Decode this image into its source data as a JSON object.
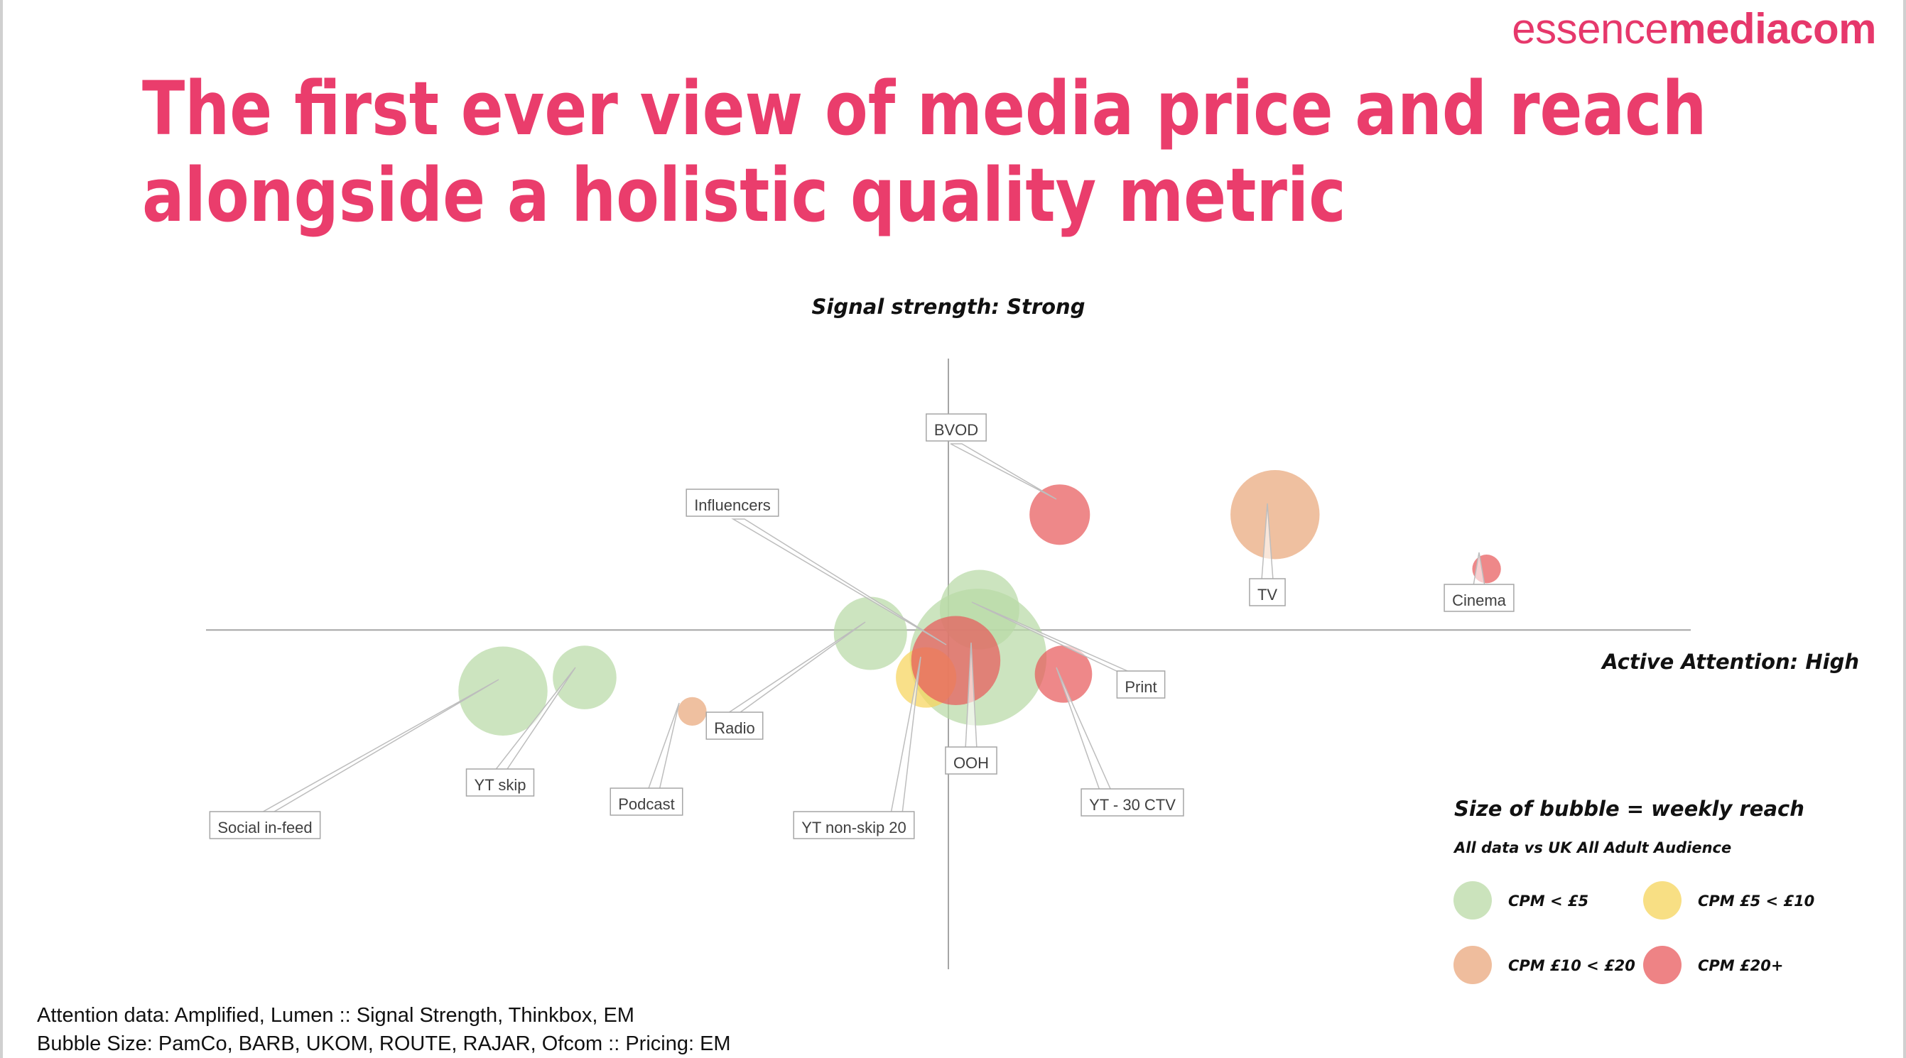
{
  "brand": {
    "logo_part1": "essence",
    "logo_part2": "mediacom"
  },
  "title": {
    "line1": "The first ever view of media price and reach",
    "line2": "alongside a holistic quality metric"
  },
  "chart_data": {
    "type": "scatter",
    "axes": {
      "y_top_label": "Signal strength: Strong",
      "x_right_label": "Active Attention: High",
      "xlim": [
        -10,
        10
      ],
      "ylim": [
        -5,
        4
      ]
    },
    "legend": {
      "title": "Size of bubble = weekly reach",
      "subtitle": "All data vs UK All Adult Audience",
      "placement": "bottom-right",
      "items": [
        {
          "label": "CPM < £5",
          "category": "cpm_lt5"
        },
        {
          "label": "CPM  £5 < £10",
          "category": "cpm_5_10"
        },
        {
          "label": "CPM  £10 < £20",
          "category": "cpm_10_20"
        },
        {
          "label": "CPM  £20+",
          "category": "cpm_20plus"
        }
      ]
    },
    "colors": {
      "cpm_lt5": "#b9d9a6",
      "cpm_5_10": "#f6d45b",
      "cpm_10_20": "#e9a77c",
      "cpm_20plus": "#e85a5c"
    },
    "points": [
      {
        "label": "Social in-feed",
        "x": -6.0,
        "y": -0.9,
        "reach": 56,
        "category": "cpm_lt5"
      },
      {
        "label": "YT skip",
        "x": -4.9,
        "y": -0.7,
        "reach": 40,
        "category": "cpm_lt5"
      },
      {
        "label": "Podcast",
        "x": -3.45,
        "y": -1.2,
        "reach": 18,
        "category": "cpm_10_20"
      },
      {
        "label": "Radio",
        "x": -1.05,
        "y": -0.05,
        "reach": 46,
        "category": "cpm_lt5"
      },
      {
        "label": "OOH",
        "x": 0.4,
        "y": -0.4,
        "reach": 86,
        "category": "cpm_lt5"
      },
      {
        "label": "Influencers",
        "x": 0.42,
        "y": 0.3,
        "reach": 50,
        "category": "cpm_lt5"
      },
      {
        "label": "YT non-skip 20",
        "x": -0.3,
        "y": -0.7,
        "reach": 38,
        "category": "cpm_5_10"
      },
      {
        "label": "YT - 30 CTV",
        "x": 1.55,
        "y": -0.65,
        "reach": 36,
        "category": "cpm_20plus"
      },
      {
        "label": "Print",
        "x": 0.1,
        "y": -0.45,
        "reach": 56,
        "category": "cpm_20plus"
      },
      {
        "label": "BVOD",
        "x": 1.5,
        "y": 1.7,
        "reach": 38,
        "category": "cpm_20plus"
      },
      {
        "label": "TV",
        "x": 4.4,
        "y": 1.7,
        "reach": 56,
        "category": "cpm_10_20"
      },
      {
        "label": "Cinema",
        "x": 7.25,
        "y": 0.9,
        "reach": 18,
        "category": "cpm_20plus"
      }
    ]
  },
  "source": {
    "line1": "Attention data: Amplified, Lumen :: Signal Strength, Thinkbox, EM",
    "line2": "Bubble Size: PamCo, BARB, UKOM, ROUTE, RAJAR, Ofcom :: Pricing: EM"
  }
}
